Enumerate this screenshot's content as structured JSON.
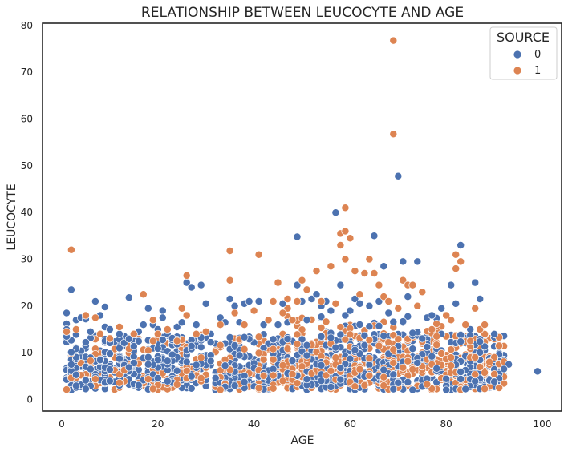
{
  "chart_data": {
    "type": "scatter",
    "title": "RELATIONSHIP BETWEEN LEUCOCYTE AND AGE",
    "xlabel": "AGE",
    "ylabel": "LEUCOCYTE",
    "xlim": [
      -4,
      104
    ],
    "ylim": [
      -2.5,
      80.5
    ],
    "xticks": [
      0,
      20,
      40,
      60,
      80,
      100
    ],
    "yticks": [
      0,
      10,
      20,
      30,
      40,
      50,
      60,
      70,
      80
    ],
    "grid": false,
    "legend": {
      "title": "SOURCE",
      "placement": "top-right"
    },
    "series": [
      {
        "name": "0",
        "color": "#4c72b0",
        "points": [
          [
            1,
            18.5
          ],
          [
            1,
            16.2
          ],
          [
            1,
            15
          ],
          [
            2,
            23.5
          ],
          [
            3,
            17
          ],
          [
            4,
            17.5
          ],
          [
            5,
            17.2
          ],
          [
            6,
            14.5
          ],
          [
            7,
            21
          ],
          [
            8,
            18
          ],
          [
            9,
            19.8
          ],
          [
            9,
            15.5
          ],
          [
            10,
            15
          ],
          [
            12,
            14
          ],
          [
            14,
            21.8
          ],
          [
            16,
            14.5
          ],
          [
            17,
            16
          ],
          [
            18,
            19.5
          ],
          [
            19,
            16
          ],
          [
            20,
            15
          ],
          [
            21,
            19
          ],
          [
            21,
            17.5
          ],
          [
            22,
            14.8
          ],
          [
            24,
            15.5
          ],
          [
            25,
            16.5
          ],
          [
            26,
            25
          ],
          [
            27,
            24
          ],
          [
            28,
            16
          ],
          [
            29,
            24.5
          ],
          [
            30,
            20.5
          ],
          [
            33,
            17.5
          ],
          [
            34,
            16.5
          ],
          [
            35,
            21.5
          ],
          [
            36,
            20
          ],
          [
            37,
            16.5
          ],
          [
            38,
            20.5
          ],
          [
            39,
            21
          ],
          [
            41,
            21
          ],
          [
            42,
            16
          ],
          [
            45,
            16
          ],
          [
            46,
            20.5
          ],
          [
            47,
            16.5
          ],
          [
            49,
            34.8
          ],
          [
            49,
            24.5
          ],
          [
            50,
            21
          ],
          [
            51,
            17
          ],
          [
            52,
            21.5
          ],
          [
            53,
            22.5
          ],
          [
            54,
            20
          ],
          [
            55,
            21
          ],
          [
            56,
            19
          ],
          [
            57,
            40
          ],
          [
            58,
            24.5
          ],
          [
            59,
            18
          ],
          [
            60,
            19
          ],
          [
            61,
            21.5
          ],
          [
            62,
            20.5
          ],
          [
            64,
            20
          ],
          [
            65,
            35
          ],
          [
            66,
            21
          ],
          [
            67,
            28.5
          ],
          [
            68,
            18.5
          ],
          [
            70,
            47.8
          ],
          [
            71,
            29.5
          ],
          [
            72,
            22
          ],
          [
            74,
            29.5
          ],
          [
            76,
            17.5
          ],
          [
            77,
            18
          ],
          [
            79,
            19.5
          ],
          [
            81,
            24.5
          ],
          [
            82,
            20.5
          ],
          [
            83,
            33
          ],
          [
            85,
            15
          ],
          [
            86,
            25
          ],
          [
            87,
            21.5
          ],
          [
            99,
            6
          ],
          [
            93,
            7.5
          ],
          [
            92,
            6.5
          ]
        ]
      },
      {
        "name": "1",
        "color": "#dd8452",
        "points": [
          [
            1,
            14.5
          ],
          [
            2,
            32
          ],
          [
            3,
            15
          ],
          [
            5,
            18
          ],
          [
            7,
            17.5
          ],
          [
            8,
            14
          ],
          [
            12,
            15.5
          ],
          [
            15,
            14
          ],
          [
            17,
            22.5
          ],
          [
            19,
            17
          ],
          [
            20,
            14
          ],
          [
            22,
            15
          ],
          [
            24,
            12.5
          ],
          [
            25,
            19.5
          ],
          [
            26,
            26.5
          ],
          [
            26,
            18
          ],
          [
            28,
            14
          ],
          [
            30,
            14.5
          ],
          [
            33,
            16
          ],
          [
            35,
            31.8
          ],
          [
            35,
            25.5
          ],
          [
            36,
            18.5
          ],
          [
            38,
            16
          ],
          [
            40,
            19
          ],
          [
            41,
            31
          ],
          [
            43,
            17
          ],
          [
            44,
            21
          ],
          [
            45,
            25
          ],
          [
            46,
            18.5
          ],
          [
            47,
            21.5
          ],
          [
            48,
            17
          ],
          [
            49,
            21
          ],
          [
            50,
            25.5
          ],
          [
            51,
            23.5
          ],
          [
            53,
            27.5
          ],
          [
            54,
            21
          ],
          [
            56,
            28.5
          ],
          [
            57,
            20.5
          ],
          [
            58,
            35.5
          ],
          [
            58,
            33
          ],
          [
            59,
            41
          ],
          [
            59,
            36
          ],
          [
            59,
            30
          ],
          [
            60,
            34.5
          ],
          [
            61,
            27.5
          ],
          [
            62,
            22.5
          ],
          [
            63,
            27
          ],
          [
            64,
            30
          ],
          [
            65,
            27
          ],
          [
            66,
            24.5
          ],
          [
            67,
            22
          ],
          [
            68,
            21
          ],
          [
            69,
            76.8
          ],
          [
            69,
            56.8
          ],
          [
            70,
            19.5
          ],
          [
            71,
            25.5
          ],
          [
            72,
            24.5
          ],
          [
            73,
            24.5
          ],
          [
            74,
            20
          ],
          [
            75,
            23
          ],
          [
            77,
            15
          ],
          [
            78,
            13.5
          ],
          [
            80,
            18
          ],
          [
            81,
            17
          ],
          [
            82,
            28
          ],
          [
            82,
            31
          ],
          [
            83,
            29.5
          ],
          [
            84,
            16
          ],
          [
            85,
            12.5
          ],
          [
            86,
            19.5
          ],
          [
            87,
            15
          ],
          [
            88,
            16
          ],
          [
            90,
            9
          ],
          [
            91,
            11.5
          ],
          [
            89,
            8
          ]
        ]
      }
    ]
  }
}
